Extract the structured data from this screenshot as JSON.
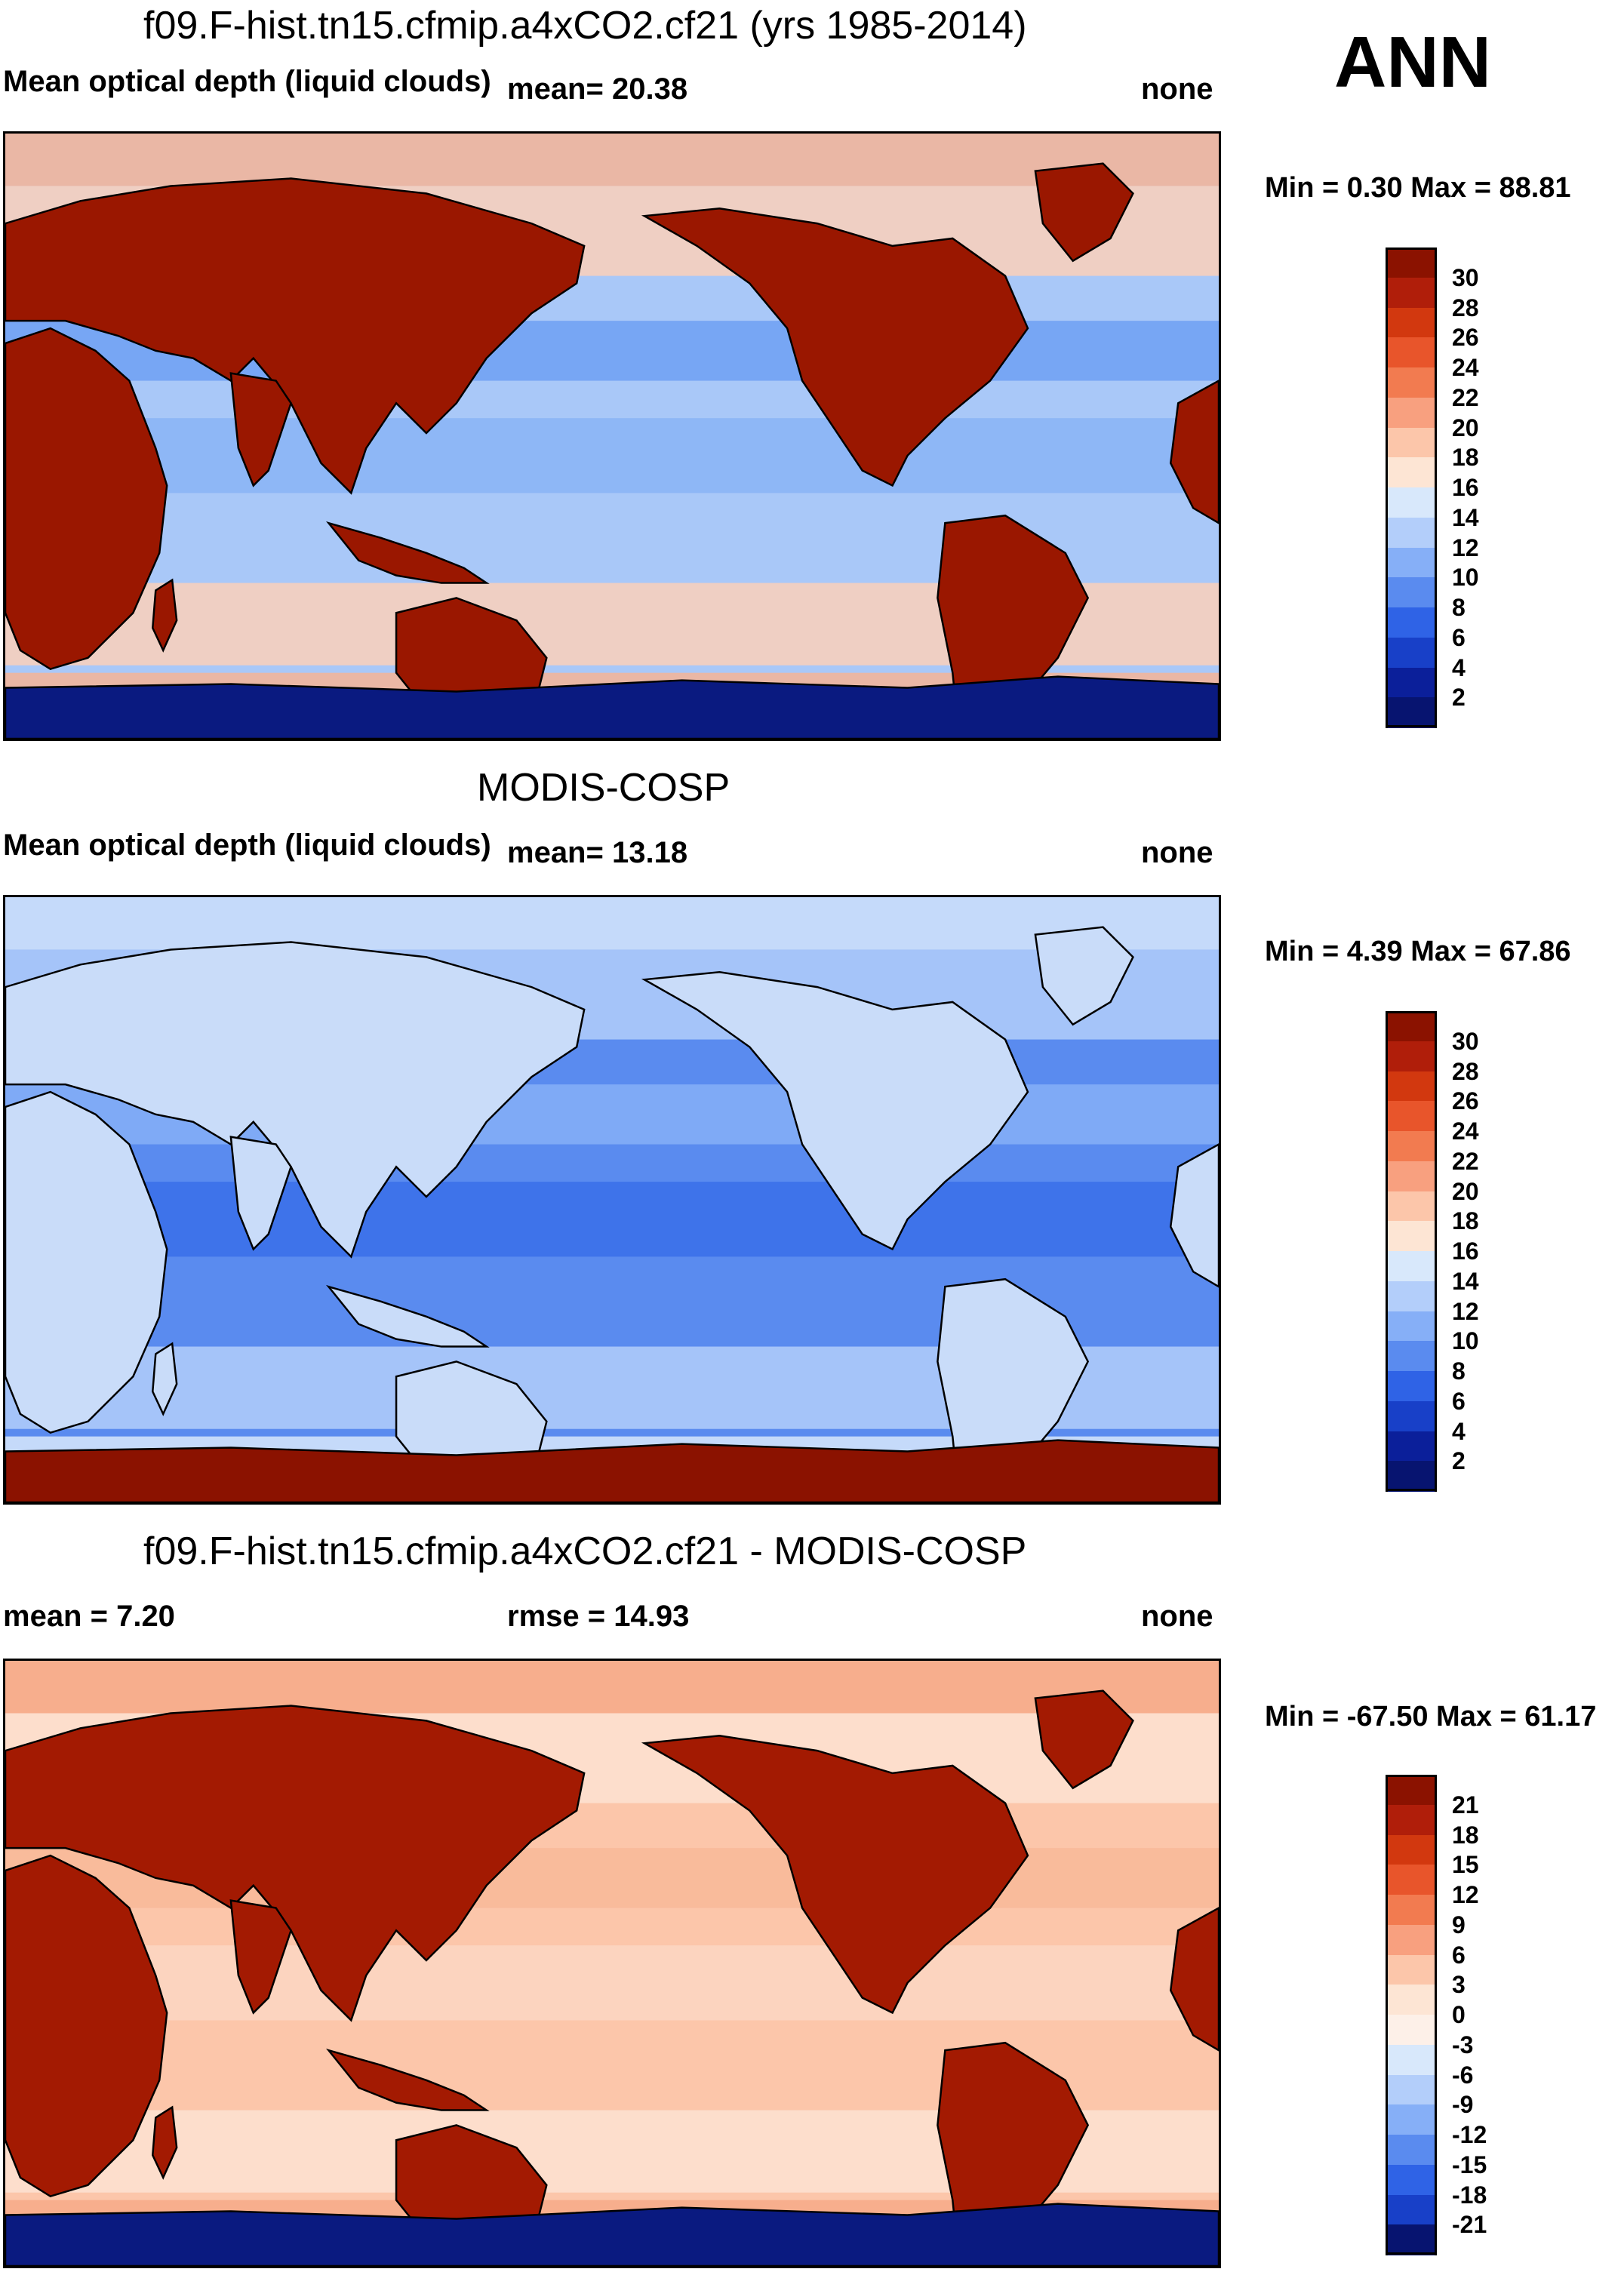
{
  "season": "ANN",
  "panels": [
    {
      "title": "f09.F-hist.tn15.cfmip.a4xCO2.cf21 (yrs 1985-2014)",
      "left_text": "Mean optical depth (liquid clouds)",
      "mid_text": "mean=  20.38",
      "right_text": "none",
      "minmax": "Min =   0.30 Max =  88.81",
      "levels": [
        "30",
        "28",
        "26",
        "24",
        "22",
        "20",
        "18",
        "16",
        "14",
        "12",
        "10",
        "8",
        "6",
        "4",
        "2"
      ],
      "colors": [
        "#8b1200",
        "#b01e0a",
        "#d2380f",
        "#e8552b",
        "#f27b50",
        "#f8a07f",
        "#fcc6aa",
        "#fde5d4",
        "#d8e8fb",
        "#b3cefa",
        "#86aff7",
        "#5a8bef",
        "#2f63e6",
        "#1840c8",
        "#0b1f9a",
        "#071470"
      ],
      "ocean_colors": [
        "#a9c8f8",
        "#8ab4f6",
        "#6fa0f3",
        "#fbd0ba",
        "#f6b497"
      ],
      "land_color": "#9a1700",
      "antarctic_color": "#0a1a80"
    },
    {
      "title": "MODIS-COSP",
      "left_text": "Mean optical depth (liquid clouds)",
      "mid_text": "mean=  13.18",
      "right_text": "none",
      "minmax": "Min =   4.39 Max =  67.86",
      "levels": [
        "30",
        "28",
        "26",
        "24",
        "22",
        "20",
        "18",
        "16",
        "14",
        "12",
        "10",
        "8",
        "6",
        "4",
        "2"
      ],
      "colors": [
        "#8b1200",
        "#b01e0a",
        "#d2380f",
        "#e8552b",
        "#f27b50",
        "#f8a07f",
        "#fcc6aa",
        "#fde5d4",
        "#d8e8fb",
        "#b3cefa",
        "#86aff7",
        "#5a8bef",
        "#2f63e6",
        "#1840c8",
        "#0b1f9a",
        "#071470"
      ],
      "ocean_colors": [
        "#5a8bef",
        "#3a6fe9",
        "#86aff7",
        "#b3cefa",
        "#d8e8fb"
      ],
      "land_color": "#c9dcf9",
      "antarctic_color": "#8b1200"
    },
    {
      "title": "f09.F-hist.tn15.cfmip.a4xCO2.cf21 - MODIS-COSP",
      "left_text": "mean =   7.20",
      "mid_text": "rmse =  14.93",
      "right_text": "none",
      "minmax": "Min = -67.50 Max =  61.17",
      "levels": [
        "21",
        "18",
        "15",
        "12",
        "9",
        "6",
        "3",
        "0",
        "-3",
        "-6",
        "-9",
        "-12",
        "-15",
        "-18",
        "-21"
      ],
      "colors": [
        "#8b1200",
        "#b01e0a",
        "#d2380f",
        "#e8552b",
        "#f27b50",
        "#f8a07f",
        "#fcc6aa",
        "#fde5d4",
        "#fdf0e8",
        "#d8e8fb",
        "#b3cefa",
        "#86aff7",
        "#5a8bef",
        "#2f63e6",
        "#1840c8",
        "#071470"
      ],
      "ocean_colors": [
        "#fcc6aa",
        "#fbd6c3",
        "#f8b899",
        "#fde2d2",
        "#f6a988"
      ],
      "land_color": "#a31a02",
      "antarctic_color": "#0a1a80"
    }
  ],
  "chart_data": {
    "type": "heatmap",
    "title": "f09.F-hist.tn15.cfmip.a4xCO2.cf21 vs MODIS-COSP, Mean optical depth (liquid clouds), ANN",
    "panels": [
      {
        "name": "f09.F-hist.tn15.cfmip.a4xCO2.cf21 (yrs 1985-2014)",
        "mean": 20.38,
        "min": 0.3,
        "max": 88.81,
        "units": "none",
        "contour_levels": [
          2,
          4,
          6,
          8,
          10,
          12,
          14,
          16,
          18,
          20,
          22,
          24,
          26,
          28,
          30
        ]
      },
      {
        "name": "MODIS-COSP",
        "mean": 13.18,
        "min": 4.39,
        "max": 67.86,
        "units": "none",
        "contour_levels": [
          2,
          4,
          6,
          8,
          10,
          12,
          14,
          16,
          18,
          20,
          22,
          24,
          26,
          28,
          30
        ]
      },
      {
        "name": "f09.F-hist.tn15.cfmip.a4xCO2.cf21 - MODIS-COSP",
        "mean": 7.2,
        "rmse": 14.93,
        "min": -67.5,
        "max": 61.17,
        "units": "none",
        "contour_levels": [
          -21,
          -18,
          -15,
          -12,
          -9,
          -6,
          -3,
          0,
          3,
          6,
          9,
          12,
          15,
          18,
          21
        ]
      }
    ]
  }
}
